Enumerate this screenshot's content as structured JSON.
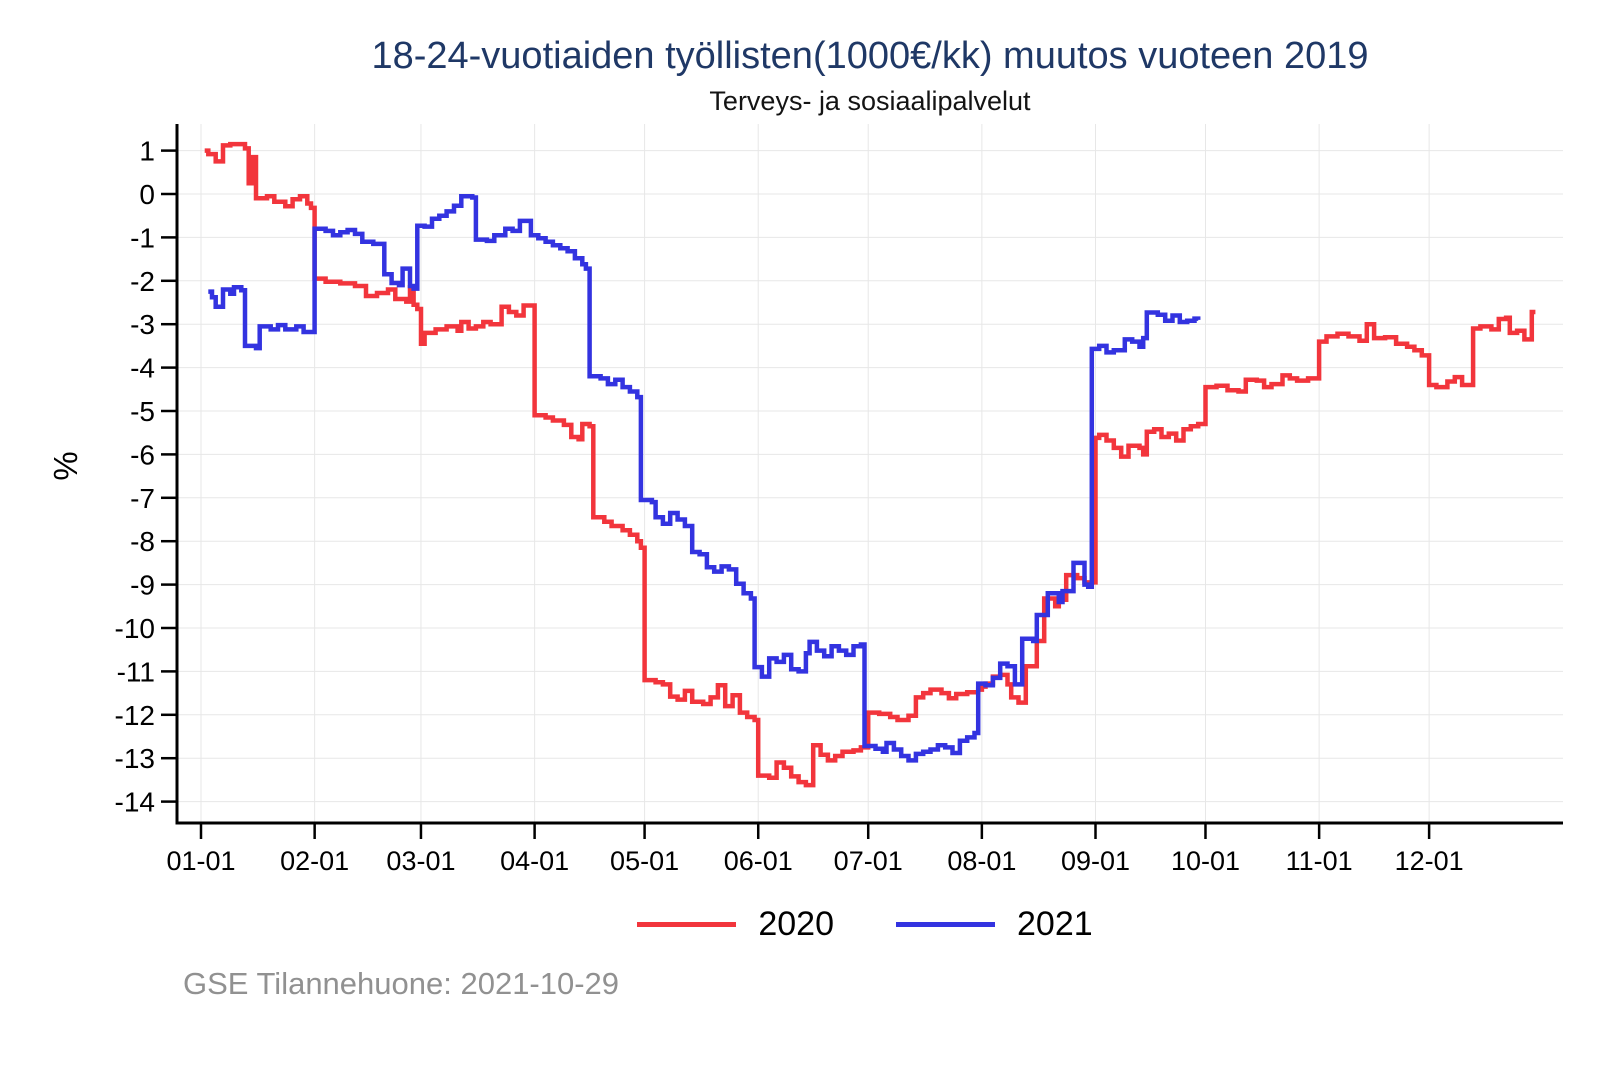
{
  "chart_data": {
    "type": "line",
    "step": true,
    "title": "18-24-vuotiaiden työllisten(1000€/kk) muutos vuoteen 2019",
    "subtitle": "Terveys- ja sosiaalipalvelut",
    "source_note": "GSE Tilannehuone: 2021-10-29",
    "xlabel": "",
    "ylabel": "%",
    "ylim": [
      -14.6,
      1.6
    ],
    "grid": "both",
    "legend_position": "bottom-center",
    "y_ticks": [
      1,
      0,
      -1,
      -2,
      -3,
      -4,
      -5,
      -6,
      -7,
      -8,
      -9,
      -10,
      -11,
      -12,
      -13,
      -14
    ],
    "x_ticks": [
      {
        "day": 0,
        "label": "01-01"
      },
      {
        "day": 31,
        "label": "02-01"
      },
      {
        "day": 60,
        "label": "03-01"
      },
      {
        "day": 91,
        "label": "04-01"
      },
      {
        "day": 121,
        "label": "05-01"
      },
      {
        "day": 152,
        "label": "06-01"
      },
      {
        "day": 182,
        "label": "07-01"
      },
      {
        "day": 213,
        "label": "08-01"
      },
      {
        "day": 244,
        "label": "09-01"
      },
      {
        "day": 274,
        "label": "10-01"
      },
      {
        "day": 305,
        "label": "11-01"
      },
      {
        "day": 335,
        "label": "12-01"
      }
    ],
    "series": [
      {
        "name": "2020",
        "color": "#f2353c",
        "points": [
          [
            1,
            1.0
          ],
          [
            2,
            0.92
          ],
          [
            4,
            0.75
          ],
          [
            6,
            1.12
          ],
          [
            8,
            1.15
          ],
          [
            12,
            1.05
          ],
          [
            13,
            0.25
          ],
          [
            14,
            0.85
          ],
          [
            15,
            -0.1
          ],
          [
            18,
            -0.05
          ],
          [
            20,
            -0.18
          ],
          [
            23,
            -0.28
          ],
          [
            25,
            -0.12
          ],
          [
            27,
            -0.05
          ],
          [
            29,
            -0.22
          ],
          [
            30,
            -0.32
          ],
          [
            31,
            -1.95
          ],
          [
            34,
            -2.02
          ],
          [
            38,
            -2.06
          ],
          [
            42,
            -2.12
          ],
          [
            45,
            -2.35
          ],
          [
            48,
            -2.28
          ],
          [
            51,
            -2.2
          ],
          [
            53,
            -2.42
          ],
          [
            56,
            -2.48
          ],
          [
            57,
            -2.15
          ],
          [
            58,
            -2.55
          ],
          [
            59,
            -2.65
          ],
          [
            60,
            -3.45
          ],
          [
            61,
            -3.2
          ],
          [
            64,
            -3.12
          ],
          [
            67,
            -3.05
          ],
          [
            70,
            -3.15
          ],
          [
            71,
            -2.95
          ],
          [
            73,
            -3.1
          ],
          [
            75,
            -3.05
          ],
          [
            77,
            -2.95
          ],
          [
            79,
            -3.0
          ],
          [
            82,
            -2.6
          ],
          [
            84,
            -2.72
          ],
          [
            86,
            -2.8
          ],
          [
            88,
            -2.57
          ],
          [
            91,
            -5.1
          ],
          [
            94,
            -5.15
          ],
          [
            96,
            -5.22
          ],
          [
            99,
            -5.32
          ],
          [
            101,
            -5.6
          ],
          [
            103,
            -5.65
          ],
          [
            104,
            -5.3
          ],
          [
            106,
            -5.35
          ],
          [
            107,
            -7.45
          ],
          [
            110,
            -7.55
          ],
          [
            112,
            -7.65
          ],
          [
            115,
            -7.75
          ],
          [
            117,
            -7.85
          ],
          [
            119,
            -8.0
          ],
          [
            120,
            -8.15
          ],
          [
            121,
            -11.2
          ],
          [
            124,
            -11.25
          ],
          [
            126,
            -11.3
          ],
          [
            128,
            -11.58
          ],
          [
            130,
            -11.65
          ],
          [
            132,
            -11.45
          ],
          [
            134,
            -11.7
          ],
          [
            137,
            -11.75
          ],
          [
            139,
            -11.6
          ],
          [
            141,
            -11.32
          ],
          [
            143,
            -11.8
          ],
          [
            145,
            -11.55
          ],
          [
            147,
            -11.95
          ],
          [
            149,
            -12.05
          ],
          [
            151,
            -12.12
          ],
          [
            152,
            -13.4
          ],
          [
            155,
            -13.45
          ],
          [
            157,
            -13.1
          ],
          [
            159,
            -13.22
          ],
          [
            161,
            -13.42
          ],
          [
            163,
            -13.55
          ],
          [
            165,
            -13.62
          ],
          [
            167,
            -12.7
          ],
          [
            169,
            -12.92
          ],
          [
            171,
            -13.05
          ],
          [
            173,
            -12.95
          ],
          [
            175,
            -12.85
          ],
          [
            178,
            -12.82
          ],
          [
            180,
            -12.75
          ],
          [
            182,
            -11.95
          ],
          [
            185,
            -11.98
          ],
          [
            188,
            -12.05
          ],
          [
            190,
            -12.12
          ],
          [
            193,
            -12.02
          ],
          [
            195,
            -11.6
          ],
          [
            197,
            -11.5
          ],
          [
            199,
            -11.42
          ],
          [
            202,
            -11.5
          ],
          [
            204,
            -11.62
          ],
          [
            206,
            -11.52
          ],
          [
            209,
            -11.48
          ],
          [
            212,
            -11.42
          ],
          [
            213,
            -11.35
          ],
          [
            214,
            -11.28
          ],
          [
            216,
            -11.12
          ],
          [
            218,
            -11.08
          ],
          [
            220,
            -11.3
          ],
          [
            221,
            -11.6
          ],
          [
            223,
            -11.72
          ],
          [
            225,
            -10.88
          ],
          [
            228,
            -10.3
          ],
          [
            230,
            -9.32
          ],
          [
            233,
            -9.5
          ],
          [
            234,
            -9.35
          ],
          [
            236,
            -8.78
          ],
          [
            239,
            -8.85
          ],
          [
            241,
            -8.95
          ],
          [
            244,
            -5.62
          ],
          [
            245,
            -5.55
          ],
          [
            247,
            -5.68
          ],
          [
            249,
            -5.85
          ],
          [
            251,
            -6.05
          ],
          [
            253,
            -5.8
          ],
          [
            256,
            -5.85
          ],
          [
            257,
            -6.0
          ],
          [
            258,
            -5.48
          ],
          [
            260,
            -5.42
          ],
          [
            262,
            -5.6
          ],
          [
            264,
            -5.52
          ],
          [
            266,
            -5.68
          ],
          [
            268,
            -5.42
          ],
          [
            270,
            -5.35
          ],
          [
            272,
            -5.3
          ],
          [
            274,
            -4.45
          ],
          [
            277,
            -4.42
          ],
          [
            280,
            -4.52
          ],
          [
            283,
            -4.55
          ],
          [
            285,
            -4.28
          ],
          [
            288,
            -4.3
          ],
          [
            290,
            -4.45
          ],
          [
            292,
            -4.38
          ],
          [
            295,
            -4.18
          ],
          [
            297,
            -4.25
          ],
          [
            299,
            -4.3
          ],
          [
            302,
            -4.25
          ],
          [
            305,
            -3.4
          ],
          [
            307,
            -3.28
          ],
          [
            310,
            -3.22
          ],
          [
            313,
            -3.28
          ],
          [
            316,
            -3.38
          ],
          [
            318,
            -3.0
          ],
          [
            320,
            -3.32
          ],
          [
            323,
            -3.3
          ],
          [
            326,
            -3.45
          ],
          [
            329,
            -3.52
          ],
          [
            331,
            -3.6
          ],
          [
            333,
            -3.72
          ],
          [
            335,
            -4.4
          ],
          [
            337,
            -4.45
          ],
          [
            340,
            -4.32
          ],
          [
            342,
            -4.22
          ],
          [
            344,
            -4.4
          ],
          [
            347,
            -3.1
          ],
          [
            349,
            -3.05
          ],
          [
            352,
            -3.12
          ],
          [
            354,
            -2.88
          ],
          [
            356,
            -2.85
          ],
          [
            357,
            -3.2
          ],
          [
            359,
            -3.15
          ],
          [
            361,
            -3.35
          ],
          [
            363,
            -2.72
          ],
          [
            364,
            -2.72
          ]
        ]
      },
      {
        "name": "2021",
        "color": "#3333e0",
        "points": [
          [
            2,
            -2.25
          ],
          [
            3,
            -2.38
          ],
          [
            4,
            -2.6
          ],
          [
            6,
            -2.2
          ],
          [
            8,
            -2.3
          ],
          [
            9,
            -2.15
          ],
          [
            11,
            -2.22
          ],
          [
            12,
            -3.5
          ],
          [
            15,
            -3.55
          ],
          [
            16,
            -3.05
          ],
          [
            19,
            -3.12
          ],
          [
            21,
            -3.02
          ],
          [
            23,
            -3.12
          ],
          [
            26,
            -3.05
          ],
          [
            28,
            -3.18
          ],
          [
            31,
            -0.8
          ],
          [
            34,
            -0.85
          ],
          [
            36,
            -0.95
          ],
          [
            38,
            -0.88
          ],
          [
            40,
            -0.83
          ],
          [
            42,
            -0.92
          ],
          [
            44,
            -1.1
          ],
          [
            47,
            -1.15
          ],
          [
            50,
            -1.85
          ],
          [
            52,
            -2.05
          ],
          [
            54,
            -2.1
          ],
          [
            55,
            -1.72
          ],
          [
            57,
            -2.12
          ],
          [
            58,
            -2.18
          ],
          [
            59,
            -0.73
          ],
          [
            61,
            -0.75
          ],
          [
            63,
            -0.57
          ],
          [
            65,
            -0.5
          ],
          [
            67,
            -0.4
          ],
          [
            69,
            -0.27
          ],
          [
            71,
            -0.05
          ],
          [
            74,
            -0.08
          ],
          [
            75,
            -1.05
          ],
          [
            78,
            -1.08
          ],
          [
            80,
            -0.95
          ],
          [
            83,
            -0.8
          ],
          [
            85,
            -0.85
          ],
          [
            87,
            -0.62
          ],
          [
            90,
            -0.95
          ],
          [
            92,
            -1.02
          ],
          [
            94,
            -1.1
          ],
          [
            96,
            -1.18
          ],
          [
            98,
            -1.25
          ],
          [
            100,
            -1.32
          ],
          [
            102,
            -1.48
          ],
          [
            104,
            -1.62
          ],
          [
            105,
            -1.72
          ],
          [
            106,
            -4.2
          ],
          [
            109,
            -4.25
          ],
          [
            111,
            -4.38
          ],
          [
            113,
            -4.28
          ],
          [
            115,
            -4.45
          ],
          [
            117,
            -4.55
          ],
          [
            119,
            -4.68
          ],
          [
            120,
            -7.05
          ],
          [
            123,
            -7.1
          ],
          [
            124,
            -7.45
          ],
          [
            126,
            -7.6
          ],
          [
            128,
            -7.35
          ],
          [
            130,
            -7.5
          ],
          [
            132,
            -7.65
          ],
          [
            134,
            -8.25
          ],
          [
            136,
            -8.3
          ],
          [
            138,
            -8.6
          ],
          [
            140,
            -8.7
          ],
          [
            142,
            -8.58
          ],
          [
            144,
            -8.65
          ],
          [
            146,
            -8.98
          ],
          [
            148,
            -9.2
          ],
          [
            150,
            -9.32
          ],
          [
            151,
            -10.9
          ],
          [
            153,
            -11.12
          ],
          [
            155,
            -10.7
          ],
          [
            157,
            -10.78
          ],
          [
            159,
            -10.62
          ],
          [
            161,
            -10.95
          ],
          [
            163,
            -11.0
          ],
          [
            165,
            -10.58
          ],
          [
            166,
            -10.32
          ],
          [
            168,
            -10.52
          ],
          [
            170,
            -10.65
          ],
          [
            172,
            -10.42
          ],
          [
            174,
            -10.52
          ],
          [
            176,
            -10.62
          ],
          [
            178,
            -10.42
          ],
          [
            180,
            -10.38
          ],
          [
            181,
            -12.72
          ],
          [
            184,
            -12.78
          ],
          [
            186,
            -12.85
          ],
          [
            187,
            -12.65
          ],
          [
            189,
            -12.8
          ],
          [
            191,
            -12.95
          ],
          [
            193,
            -13.05
          ],
          [
            195,
            -12.9
          ],
          [
            197,
            -12.85
          ],
          [
            199,
            -12.8
          ],
          [
            201,
            -12.7
          ],
          [
            203,
            -12.75
          ],
          [
            205,
            -12.88
          ],
          [
            207,
            -12.6
          ],
          [
            209,
            -12.52
          ],
          [
            211,
            -12.42
          ],
          [
            212,
            -11.28
          ],
          [
            214,
            -11.32
          ],
          [
            216,
            -11.15
          ],
          [
            218,
            -10.82
          ],
          [
            220,
            -10.88
          ],
          [
            222,
            -11.3
          ],
          [
            224,
            -10.25
          ],
          [
            227,
            -10.3
          ],
          [
            228,
            -9.7
          ],
          [
            231,
            -9.2
          ],
          [
            234,
            -9.4
          ],
          [
            235,
            -9.15
          ],
          [
            238,
            -8.5
          ],
          [
            241,
            -9.0
          ],
          [
            242,
            -9.05
          ],
          [
            243,
            -3.57
          ],
          [
            245,
            -3.5
          ],
          [
            247,
            -3.65
          ],
          [
            249,
            -3.6
          ],
          [
            252,
            -3.35
          ],
          [
            254,
            -3.4
          ],
          [
            256,
            -3.52
          ],
          [
            257,
            -3.32
          ],
          [
            258,
            -2.73
          ],
          [
            261,
            -2.78
          ],
          [
            263,
            -2.92
          ],
          [
            265,
            -2.8
          ],
          [
            267,
            -2.95
          ],
          [
            269,
            -2.92
          ],
          [
            271,
            -2.87
          ],
          [
            272,
            -2.9
          ]
        ]
      }
    ]
  }
}
